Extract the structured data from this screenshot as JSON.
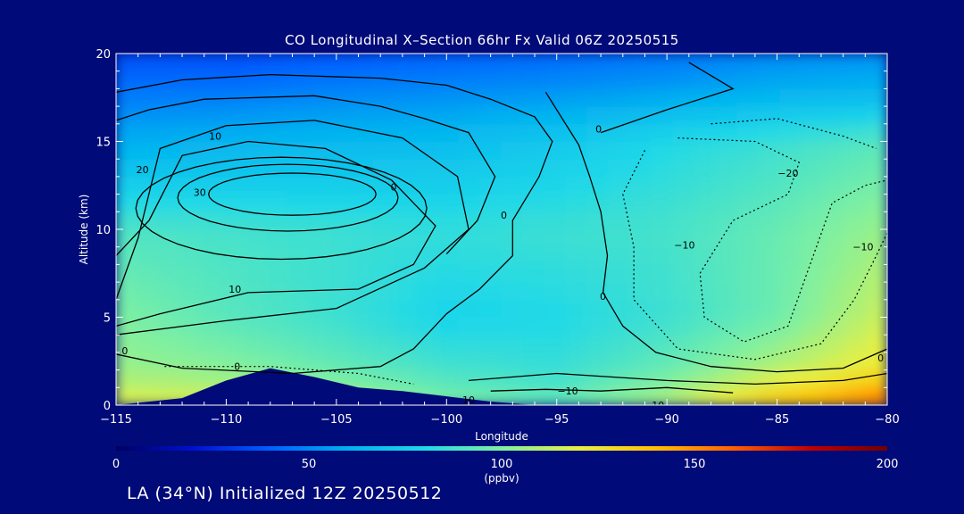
{
  "page": {
    "background": "#000a78",
    "footer": "LA (34°N) Initialized 12Z 20250512"
  },
  "chart_data": {
    "type": "heatmap",
    "title": "CO Longitudinal X–Section 66hr  Fx Valid 06Z 20250515",
    "xlabel": "Longitude",
    "ylabel": "Altitude (km)",
    "xlim": [
      -115,
      -80
    ],
    "ylim": [
      0,
      20
    ],
    "xticks": [
      -115,
      -110,
      -105,
      -100,
      -95,
      -90,
      -85,
      -80
    ],
    "xtick_labels": [
      "−115",
      "−110",
      "−105",
      "−100",
      "−95",
      "−90",
      "−85",
      "−80"
    ],
    "yticks": [
      0,
      5,
      10,
      15,
      20
    ],
    "ytick_labels": [
      "0",
      "5",
      "10",
      "15",
      "20"
    ],
    "grid": false,
    "colorbar": {
      "label": "(ppbv)",
      "range": [
        0,
        200
      ],
      "ticks": [
        0,
        50,
        100,
        150,
        200
      ],
      "tick_labels": [
        "0",
        "50",
        "100",
        "150",
        "200"
      ],
      "colors": [
        "#000060",
        "#0010d0",
        "#0060ff",
        "#00b0f0",
        "#20d8e8",
        "#80f0a0",
        "#e8f040",
        "#ffc000",
        "#ff6000",
        "#c00000",
        "#700000"
      ]
    },
    "field_approx": {
      "x": [
        -115,
        -110,
        -105,
        -100,
        -95,
        -90,
        -85,
        -80
      ],
      "z": [
        0,
        2,
        5,
        10,
        15,
        18,
        20
      ],
      "values_ppbv": [
        [
          120,
          118,
          110,
          100,
          95,
          110,
          140,
          160
        ],
        [
          105,
          102,
          95,
          88,
          85,
          95,
          110,
          125
        ],
        [
          100,
          92,
          86,
          78,
          80,
          86,
          96,
          115
        ],
        [
          90,
          88,
          86,
          84,
          86,
          88,
          95,
          105
        ],
        [
          60,
          62,
          64,
          66,
          72,
          80,
          86,
          92
        ],
        [
          45,
          45,
          48,
          50,
          52,
          55,
          60,
          62
        ],
        [
          35,
          35,
          38,
          40,
          42,
          45,
          50,
          52
        ]
      ]
    },
    "terrain": {
      "x": [
        -115,
        -112,
        -110,
        -108,
        -106,
        -104,
        -102,
        -100,
        -98,
        -96
      ],
      "z": [
        0,
        0.4,
        1.4,
        2.1,
        1.6,
        1.0,
        0.8,
        0.5,
        0.2,
        0.0
      ]
    },
    "contour_labels": [
      {
        "text": "10",
        "lon": -110.5,
        "alt": 15.3
      },
      {
        "text": "20",
        "lon": -113.8,
        "alt": 13.4
      },
      {
        "text": "30",
        "lon": -111.2,
        "alt": 12.1
      },
      {
        "text": "0",
        "lon": -102.4,
        "alt": 12.4
      },
      {
        "text": "0",
        "lon": -97.4,
        "alt": 10.8
      },
      {
        "text": "10",
        "lon": -109.6,
        "alt": 6.6
      },
      {
        "text": "0",
        "lon": -114.6,
        "alt": 3.1
      },
      {
        "text": "0",
        "lon": -109.5,
        "alt": 2.2
      },
      {
        "text": "0",
        "lon": -93.1,
        "alt": 15.7
      },
      {
        "text": "−20",
        "lon": -84.5,
        "alt": 13.2
      },
      {
        "text": "−10",
        "lon": -89.2,
        "alt": 9.1
      },
      {
        "text": "−10",
        "lon": -81.1,
        "alt": 9.0
      },
      {
        "text": "0",
        "lon": -92.9,
        "alt": 6.2
      },
      {
        "text": "0",
        "lon": -80.3,
        "alt": 2.7
      },
      {
        "text": "10",
        "lon": -99.0,
        "alt": 0.3
      },
      {
        "text": "−10",
        "lon": -94.5,
        "alt": 0.8
      },
      {
        "text": "10",
        "lon": -90.4,
        "alt": 0.0
      }
    ]
  }
}
